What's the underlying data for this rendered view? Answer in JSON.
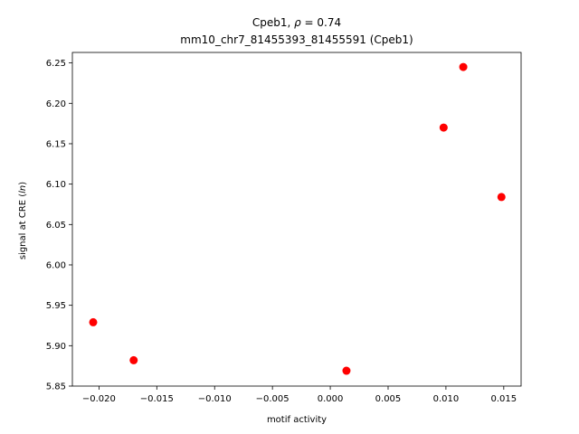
{
  "chart_data": {
    "type": "scatter",
    "title_line1_prefix": "Cpeb1, ",
    "title_line1_rho": "ρ",
    "title_line1_suffix": " = 0.74",
    "title_line2": "mm10_chr7_81455393_81455591 (Cpeb1)",
    "xlabel": "motif activity",
    "ylabel_prefix": "signal at CRE (",
    "ylabel_italic": "ln",
    "ylabel_suffix": ")",
    "xlim": [
      -0.0223,
      0.0165
    ],
    "ylim": [
      5.85,
      6.263
    ],
    "xticks": [
      -0.02,
      -0.015,
      -0.01,
      -0.005,
      0.0,
      0.005,
      0.01,
      0.015
    ],
    "xtick_labels": [
      "−0.020",
      "−0.015",
      "−0.010",
      "−0.005",
      "0.000",
      "0.005",
      "0.010",
      "0.015"
    ],
    "yticks": [
      5.85,
      5.9,
      5.95,
      6.0,
      6.05,
      6.1,
      6.15,
      6.2,
      6.25
    ],
    "ytick_labels": [
      "5.85",
      "5.90",
      "5.95",
      "6.00",
      "6.05",
      "6.10",
      "6.15",
      "6.20",
      "6.25"
    ],
    "grid": false,
    "marker_color": "#ff0000",
    "points": [
      {
        "x": -0.0205,
        "y": 5.929
      },
      {
        "x": -0.017,
        "y": 5.882
      },
      {
        "x": 0.0014,
        "y": 5.869
      },
      {
        "x": 0.0098,
        "y": 6.17
      },
      {
        "x": 0.0115,
        "y": 6.245
      },
      {
        "x": 0.0148,
        "y": 6.084
      }
    ]
  }
}
